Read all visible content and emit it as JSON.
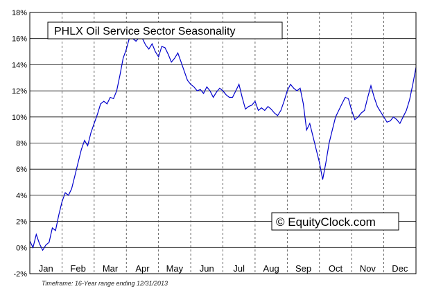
{
  "chart_data": {
    "type": "line",
    "title": "PHLX Oil Service Sector Seasonality",
    "watermark": "© EquityClock.com",
    "footnote": "Timeframe: 16-Year range ending 12/31/2013",
    "xlabel": "",
    "ylabel": "",
    "ylim": [
      -2,
      18
    ],
    "yticks": [
      "18%",
      "16%",
      "14%",
      "12%",
      "10%",
      "8%",
      "6%",
      "4%",
      "2%",
      "0%",
      "-2%"
    ],
    "ytick_values": [
      18,
      16,
      14,
      12,
      10,
      8,
      6,
      4,
      2,
      0,
      -2
    ],
    "categories": [
      "Jan",
      "Feb",
      "Mar",
      "Apr",
      "May",
      "Jun",
      "Jul",
      "Aug",
      "Sep",
      "Oct",
      "Nov",
      "Dec"
    ],
    "grid": true,
    "line_color": "#0000cc",
    "series": [
      {
        "x": [
          0,
          0.1,
          0.2,
          0.3,
          0.4,
          0.5,
          0.6,
          0.7,
          0.8,
          0.9,
          1.0,
          1.1,
          1.2,
          1.3,
          1.4,
          1.5,
          1.6,
          1.7,
          1.8,
          1.9,
          2.0,
          2.1,
          2.2,
          2.3,
          2.4,
          2.5,
          2.6,
          2.7,
          2.8,
          2.9,
          3.0,
          3.1,
          3.2,
          3.3,
          3.4,
          3.5,
          3.6,
          3.7,
          3.8,
          3.9,
          4.0,
          4.1,
          4.2,
          4.3,
          4.4,
          4.5,
          4.6,
          4.7,
          4.8,
          4.9,
          5.0,
          5.1,
          5.2,
          5.3,
          5.4,
          5.5,
          5.6,
          5.7,
          5.8,
          5.9,
          6.0,
          6.1,
          6.2,
          6.3,
          6.4,
          6.5,
          6.6,
          6.7,
          6.8,
          6.9,
          7.0,
          7.1,
          7.2,
          7.3,
          7.4,
          7.5,
          7.6,
          7.7,
          7.8,
          7.9,
          8.0,
          8.1,
          8.2,
          8.3,
          8.4,
          8.5,
          8.6,
          8.7,
          8.8,
          8.9,
          9.0,
          9.1,
          9.2,
          9.3,
          9.4,
          9.5,
          9.6,
          9.7,
          9.8,
          9.9,
          10.0,
          10.1,
          10.2,
          10.3,
          10.4,
          10.5,
          10.6,
          10.7,
          10.8,
          10.9,
          11.0,
          11.1,
          11.2,
          11.3,
          11.4,
          11.5,
          11.6,
          11.7,
          11.8,
          11.9,
          12.0
        ],
        "y": [
          0.5,
          0.0,
          1.0,
          0.3,
          -0.2,
          0.2,
          0.4,
          1.5,
          1.3,
          2.5,
          3.5,
          4.2,
          4.0,
          4.5,
          5.5,
          6.5,
          7.5,
          8.2,
          7.8,
          8.8,
          9.5,
          10.2,
          11.0,
          11.2,
          11.0,
          11.5,
          11.4,
          12.0,
          13.2,
          14.5,
          15.2,
          16.1,
          16.0,
          15.8,
          16.1,
          16.0,
          15.5,
          15.2,
          15.6,
          15.0,
          14.6,
          15.4,
          15.3,
          14.8,
          14.2,
          14.5,
          14.9,
          14.2,
          13.5,
          12.8,
          12.5,
          12.3,
          12.0,
          12.1,
          11.8,
          12.3,
          12.0,
          11.5,
          11.9,
          12.2,
          12.0,
          11.7,
          11.5,
          11.5,
          12.0,
          12.5,
          11.5,
          10.6,
          10.8,
          10.9,
          11.2,
          10.5,
          10.7,
          10.5,
          10.8,
          10.6,
          10.3,
          10.1,
          10.5,
          11.2,
          12.0,
          12.5,
          12.2,
          12.0,
          12.2,
          11.0,
          9.0,
          9.5,
          8.5,
          7.5,
          6.5,
          5.2,
          6.5,
          8.0,
          9.0,
          10.0,
          10.5,
          11.0,
          11.5,
          11.4,
          10.5,
          9.8,
          10.0,
          10.3,
          10.5,
          11.5,
          12.4,
          11.5,
          10.8,
          10.4,
          10.0,
          9.6,
          9.7,
          10.0,
          9.8,
          9.5,
          10.0,
          10.5,
          11.3,
          12.5,
          13.8
        ]
      }
    ]
  }
}
